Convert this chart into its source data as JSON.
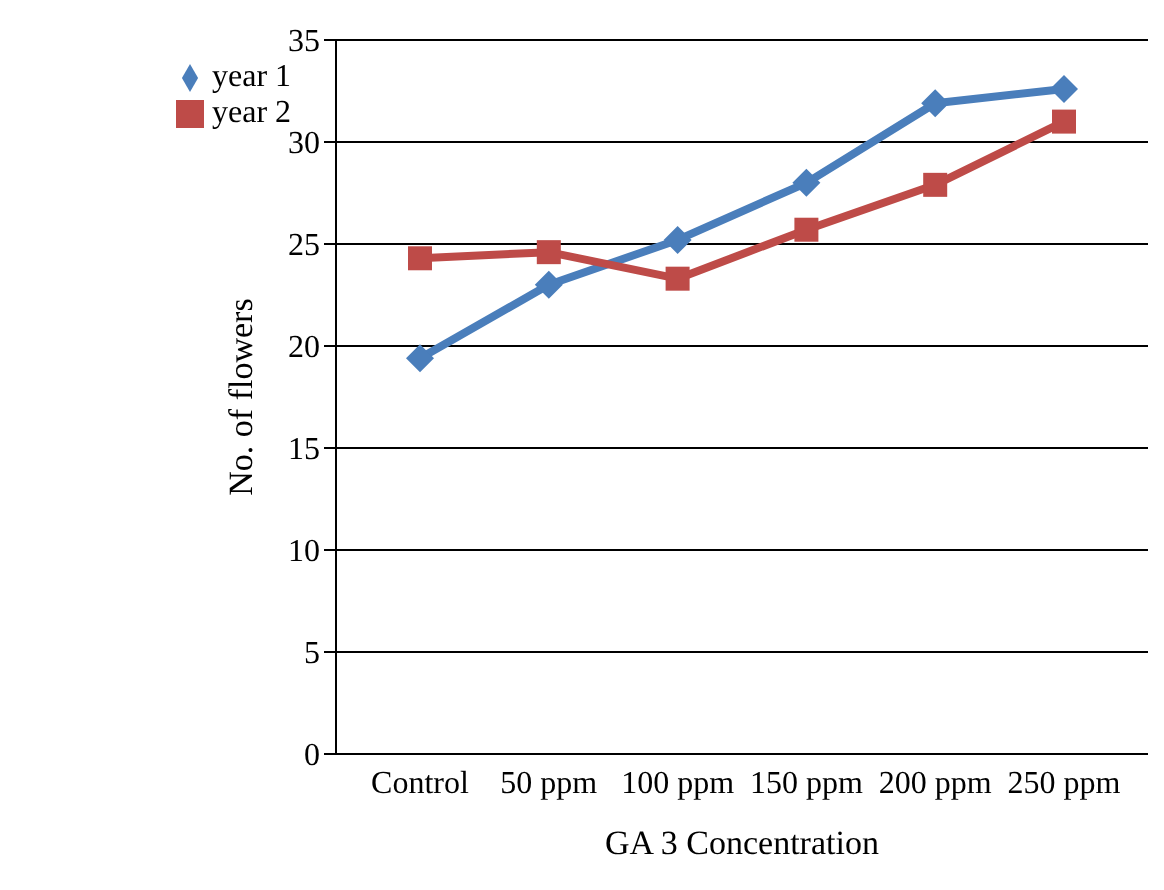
{
  "chart_data": {
    "type": "line",
    "xlabel": "GA 3 Concentration",
    "ylabel": "No. of flowers",
    "categories": [
      "Control",
      "50 ppm",
      "100 ppm",
      "150 ppm",
      "200 ppm",
      "250 ppm"
    ],
    "series": [
      {
        "name": "year 1",
        "color": "#4a7ebb",
        "marker": "diamond",
        "values": [
          19.4,
          23.0,
          25.2,
          28.0,
          31.9,
          32.6
        ]
      },
      {
        "name": "year 2",
        "color": "#be4b48",
        "marker": "square",
        "values": [
          24.3,
          24.6,
          23.3,
          25.7,
          27.9,
          31.0
        ]
      }
    ],
    "ylim": [
      0,
      35
    ],
    "yticks": [
      0,
      5,
      10,
      15,
      20,
      25,
      30,
      35
    ],
    "grid": "y",
    "legend": "top left",
    "line_style": "solid"
  }
}
